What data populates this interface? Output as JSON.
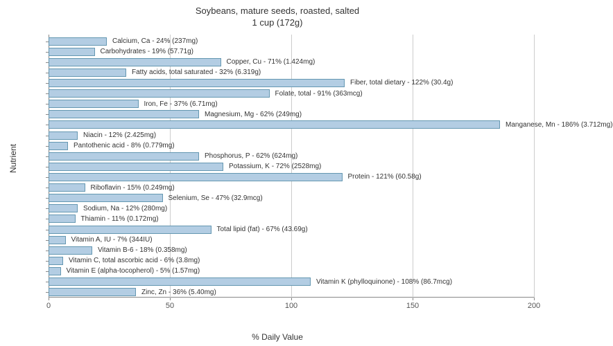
{
  "chart": {
    "type": "bar",
    "title_line1": "Soybeans, mature seeds, roasted, salted",
    "title_line2": "1 cup (172g)",
    "title_fontsize": 13,
    "x_label": "% Daily Value",
    "y_label": "Nutrient",
    "label_fontsize": 12,
    "x_max": 200,
    "x_ticks": [
      0,
      50,
      100,
      150,
      200
    ],
    "background_color": "#ffffff",
    "bar_color": "#b3cde3",
    "bar_border_color": "#6497b1",
    "grid_color": "#cccccc",
    "text_color": "#333333",
    "bar_label_fontsize": 10,
    "tick_label_fontsize": 11,
    "nutrients": [
      {
        "label": "Calcium, Ca - 24% (237mg)",
        "value": 24
      },
      {
        "label": "Carbohydrates - 19% (57.71g)",
        "value": 19
      },
      {
        "label": "Copper, Cu - 71% (1.424mg)",
        "value": 71
      },
      {
        "label": "Fatty acids, total saturated - 32% (6.319g)",
        "value": 32
      },
      {
        "label": "Fiber, total dietary - 122% (30.4g)",
        "value": 122
      },
      {
        "label": "Folate, total - 91% (363mcg)",
        "value": 91
      },
      {
        "label": "Iron, Fe - 37% (6.71mg)",
        "value": 37
      },
      {
        "label": "Magnesium, Mg - 62% (249mg)",
        "value": 62
      },
      {
        "label": "Manganese, Mn - 186% (3.712mg)",
        "value": 186
      },
      {
        "label": "Niacin - 12% (2.425mg)",
        "value": 12
      },
      {
        "label": "Pantothenic acid - 8% (0.779mg)",
        "value": 8
      },
      {
        "label": "Phosphorus, P - 62% (624mg)",
        "value": 62
      },
      {
        "label": "Potassium, K - 72% (2528mg)",
        "value": 72
      },
      {
        "label": "Protein - 121% (60.58g)",
        "value": 121
      },
      {
        "label": "Riboflavin - 15% (0.249mg)",
        "value": 15
      },
      {
        "label": "Selenium, Se - 47% (32.9mcg)",
        "value": 47
      },
      {
        "label": "Sodium, Na - 12% (280mg)",
        "value": 12
      },
      {
        "label": "Thiamin - 11% (0.172mg)",
        "value": 11
      },
      {
        "label": "Total lipid (fat) - 67% (43.69g)",
        "value": 67
      },
      {
        "label": "Vitamin A, IU - 7% (344IU)",
        "value": 7
      },
      {
        "label": "Vitamin B-6 - 18% (0.358mg)",
        "value": 18
      },
      {
        "label": "Vitamin C, total ascorbic acid - 6% (3.8mg)",
        "value": 6
      },
      {
        "label": "Vitamin E (alpha-tocopherol) - 5% (1.57mg)",
        "value": 5
      },
      {
        "label": "Vitamin K (phylloquinone) - 108% (86.7mcg)",
        "value": 108
      },
      {
        "label": "Zinc, Zn - 36% (5.40mg)",
        "value": 36
      }
    ]
  }
}
